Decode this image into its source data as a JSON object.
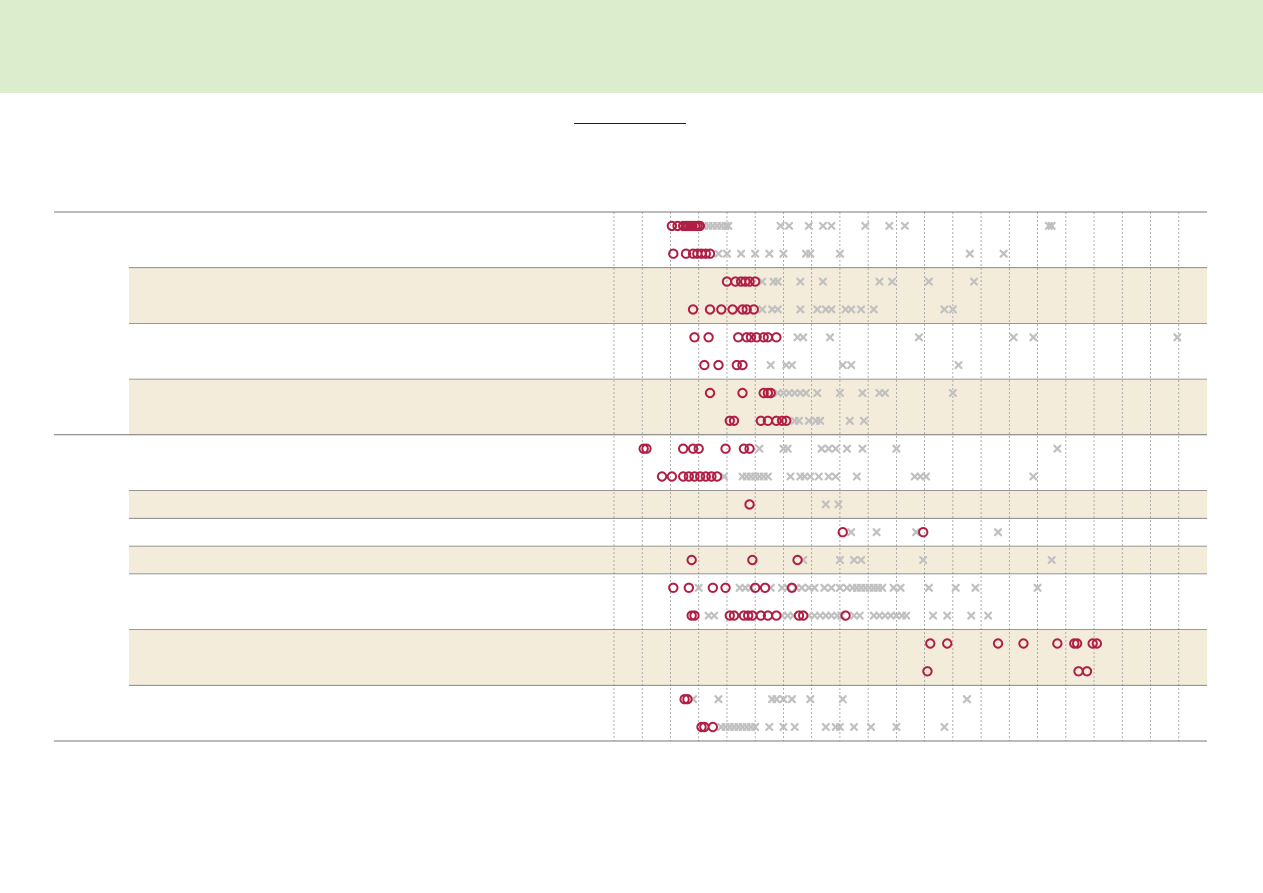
{
  "colors": {
    "banner": "#dbedcc",
    "band": "#f3ecdb",
    "highlight_marker": "#b01e44",
    "background_marker": "#c0c0c0",
    "rule": "#777777",
    "grid": "#9a9a9a"
  },
  "chart_data": {
    "type": "scatter",
    "title": "",
    "xlabel": "",
    "ylabel": "",
    "grid": true,
    "legend": "none",
    "xlim": [
      0,
      21
    ],
    "x_gridlines": [
      1,
      2,
      3,
      4,
      5,
      6,
      7,
      8,
      9,
      10,
      11,
      12,
      13,
      14,
      15,
      16,
      17,
      18,
      19,
      20
    ],
    "marker_styles": {
      "highlight": "open-circle",
      "background": "x-cross"
    },
    "groups": [
      {
        "rows": [
          {
            "band": false,
            "lines": [
              {
                "highlight": [
                  2.05,
                  2.25,
                  2.45,
                  2.55,
                  2.62,
                  2.7,
                  2.78,
                  2.88,
                  2.96,
                  3.04
                ],
                "background": [
                  3.2,
                  3.35,
                  3.5,
                  3.65,
                  3.8,
                  3.95,
                  4.05,
                  5.9,
                  6.2,
                  6.9,
                  7.4,
                  7.7,
                  8.9,
                  9.75,
                  10.3,
                  15.4,
                  15.5
                ]
              },
              {
                "highlight": [
                  2.1,
                  2.55,
                  2.8,
                  2.95,
                  3.1,
                  3.25,
                  3.4
                ],
                "background": [
                  3.7,
                  4.0,
                  4.5,
                  5.0,
                  5.5,
                  6.0,
                  6.8,
                  6.95,
                  8.0,
                  12.6,
                  13.8
                ]
              }
            ]
          },
          {
            "band": true,
            "lines": [
              {
                "highlight": [
                  4.0,
                  4.3,
                  4.5,
                  4.65,
                  4.8,
                  5.0
                ],
                "background": [
                  5.25,
                  5.65,
                  5.8,
                  6.6,
                  7.4,
                  9.4,
                  9.85,
                  11.15,
                  12.75
                ]
              },
              {
                "highlight": [
                  2.8,
                  3.4,
                  3.8,
                  4.2,
                  4.55,
                  4.7,
                  4.95
                ],
                "background": [
                  5.25,
                  5.6,
                  5.8,
                  6.6,
                  7.2,
                  7.5,
                  7.7,
                  8.2,
                  8.4,
                  8.75,
                  9.2,
                  11.7,
                  12.0
                ]
              }
            ]
          },
          {
            "band": false,
            "lines": [
              {
                "highlight": [
                  2.85,
                  3.35,
                  4.4,
                  4.7,
                  4.85,
                  5.05,
                  5.3,
                  5.45,
                  5.75
                ],
                "background": [
                  6.5,
                  6.7,
                  7.65,
                  10.8,
                  14.15,
                  14.85,
                  19.95
                ]
              },
              {
                "highlight": [
                  3.2,
                  3.7,
                  4.35,
                  4.55
                ],
                "background": [
                  5.55,
                  6.1,
                  6.3,
                  8.1,
                  8.4,
                  12.2
                ]
              }
            ]
          },
          {
            "band": true,
            "lines": [
              {
                "highlight": [
                  3.4,
                  4.55,
                  5.3,
                  5.45,
                  5.55
                ],
                "background": [
                  5.8,
                  6.0,
                  6.2,
                  6.4,
                  6.6,
                  6.8,
                  7.2,
                  8.0,
                  8.8,
                  9.4,
                  9.6,
                  12.0
                ]
              },
              {
                "highlight": [
                  4.1,
                  4.25,
                  5.2,
                  5.45,
                  5.75,
                  5.95,
                  6.1
                ],
                "background": [
                  6.4,
                  6.55,
                  6.9,
                  7.15,
                  7.3,
                  8.35,
                  8.85
                ]
              }
            ]
          }
        ]
      },
      {
        "rows": [
          {
            "band": false,
            "lines": [
              {
                "highlight": [
                  1.05,
                  1.15,
                  2.45,
                  2.8,
                  3.0,
                  3.95,
                  4.6,
                  4.8
                ],
                "background": [
                  5.15,
                  6.0,
                  6.15,
                  7.35,
                  7.6,
                  7.85,
                  8.25,
                  8.8,
                  10.0,
                  15.7
                ]
              },
              {
                "highlight": [
                  1.7,
                  2.05,
                  2.45,
                  2.65,
                  2.85,
                  3.05,
                  3.25,
                  3.45,
                  3.65
                ],
                "background": [
                  3.9,
                  4.55,
                  4.7,
                  4.85,
                  5.0,
                  5.15,
                  5.3,
                  5.45,
                  6.25,
                  6.6,
                  6.75,
                  6.95,
                  7.25,
                  7.6,
                  7.85,
                  8.6,
                  10.65,
                  10.85,
                  11.05,
                  14.85
                ]
              }
            ]
          },
          {
            "band": true,
            "lines": [
              {
                "highlight": [
                  4.8
                ],
                "background": [
                  7.5,
                  7.95
                ]
              }
            ]
          },
          {
            "band": false,
            "lines": [
              {
                "highlight": [
                  8.1,
                  10.95
                ],
                "background": [
                  8.4,
                  9.3,
                  10.7,
                  13.6
                ]
              }
            ]
          },
          {
            "band": true,
            "lines": [
              {
                "highlight": [
                  2.75,
                  4.9,
                  6.5
                ],
                "background": [
                  6.7,
                  8.0,
                  8.5,
                  8.75,
                  10.95,
                  15.5
                ]
              }
            ]
          },
          {
            "band": false,
            "lines": [
              {
                "highlight": [
                  2.1,
                  2.65,
                  3.5,
                  3.95,
                  5.0,
                  5.35,
                  6.3
                ],
                "background": [
                  3.0,
                  4.45,
                  4.65,
                  4.85,
                  5.55,
                  5.95,
                  6.15,
                  6.45,
                  6.65,
                  6.9,
                  7.1,
                  7.45,
                  7.7,
                  8.0,
                  8.25,
                  8.45,
                  8.6,
                  8.75,
                  8.9,
                  9.05,
                  9.2,
                  9.35,
                  9.5,
                  9.9,
                  10.15,
                  11.15,
                  12.1,
                  12.8,
                  15.0
                ]
              },
              {
                "highlight": [
                  2.75,
                  2.85,
                  4.1,
                  4.25,
                  4.6,
                  4.75,
                  4.9,
                  5.2,
                  5.45,
                  5.75,
                  6.55,
                  6.7,
                  8.2
                ],
                "background": [
                  3.35,
                  3.55,
                  5.95,
                  6.15,
                  6.35,
                  6.9,
                  7.1,
                  7.3,
                  7.5,
                  7.7,
                  7.9,
                  8.05,
                  8.5,
                  8.7,
                  9.2,
                  9.4,
                  9.6,
                  9.8,
                  10.0,
                  10.2,
                  10.35,
                  11.3,
                  11.8,
                  12.65,
                  13.25
                ]
              }
            ]
          },
          {
            "band": true,
            "lines": [
              {
                "highlight": [
                  11.2,
                  11.8,
                  13.6,
                  14.5,
                  15.7,
                  16.3,
                  16.4,
                  16.95,
                  17.1
                ],
                "background": []
              },
              {
                "highlight": [
                  11.1,
                  16.45,
                  16.75
                ],
                "background": []
              }
            ]
          },
          {
            "band": false,
            "lines": [
              {
                "highlight": [
                  2.5,
                  2.6
                ],
                "background": [
                  2.8,
                  3.7,
                  5.6,
                  5.75,
                  6.0,
                  6.3,
                  6.95,
                  8.1,
                  12.5
                ]
              },
              {
                "highlight": [
                  3.1,
                  3.2,
                  3.5
                ],
                "background": [
                  3.8,
                  3.95,
                  4.1,
                  4.25,
                  4.4,
                  4.55,
                  4.7,
                  4.85,
                  5.0,
                  5.5,
                  6.0,
                  6.4,
                  7.5,
                  7.85,
                  8.0,
                  8.5,
                  9.1,
                  10.0,
                  11.7
                ]
              }
            ]
          }
        ]
      }
    ]
  }
}
